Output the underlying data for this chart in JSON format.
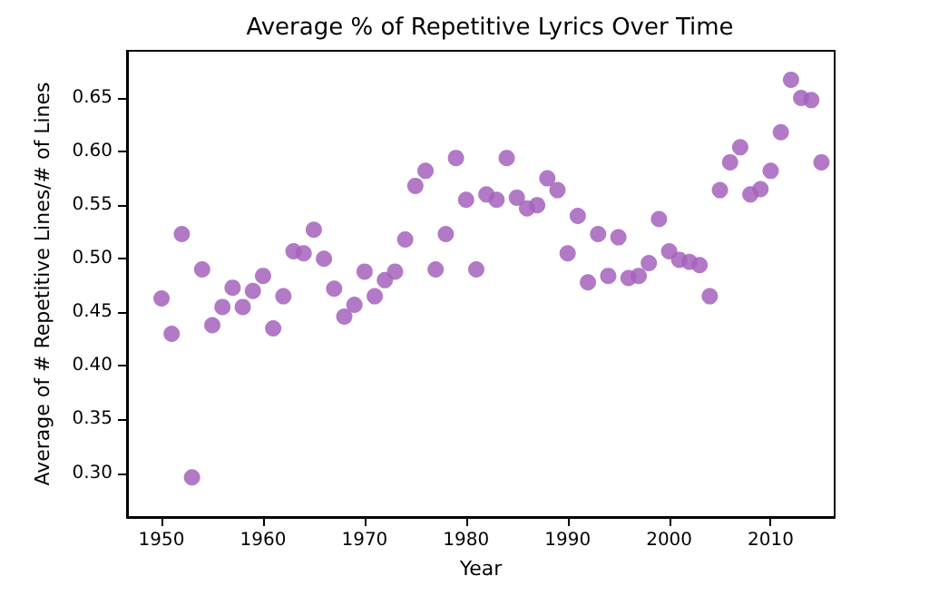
{
  "chart_data": {
    "type": "scatter",
    "title": "Average % of Repetitive Lyrics Over Time",
    "xlabel": "Year",
    "ylabel": "Average of # Repetitive Lines/# of Lines",
    "x": [
      1950,
      1951,
      1952,
      1953,
      1954,
      1955,
      1956,
      1957,
      1958,
      1959,
      1960,
      1961,
      1962,
      1963,
      1964,
      1965,
      1966,
      1967,
      1968,
      1969,
      1970,
      1971,
      1972,
      1973,
      1974,
      1975,
      1976,
      1977,
      1978,
      1979,
      1980,
      1981,
      1982,
      1983,
      1984,
      1985,
      1986,
      1987,
      1988,
      1989,
      1990,
      1991,
      1992,
      1993,
      1994,
      1995,
      1996,
      1997,
      1998,
      1999,
      2000,
      2001,
      2002,
      2003,
      2004,
      2005,
      2006,
      2007,
      2008,
      2009,
      2010,
      2011,
      2012,
      2013,
      2014,
      2015
    ],
    "series": [
      {
        "color": "#a461bc",
        "values": [
          0.463,
          0.43,
          0.523,
          0.296,
          0.49,
          0.438,
          0.455,
          0.473,
          0.455,
          0.47,
          0.484,
          0.435,
          0.465,
          0.507,
          0.505,
          0.527,
          0.5,
          0.472,
          0.446,
          0.457,
          0.488,
          0.465,
          0.48,
          0.488,
          0.518,
          0.568,
          0.582,
          0.49,
          0.523,
          0.594,
          0.555,
          0.49,
          0.56,
          0.555,
          0.594,
          0.557,
          0.547,
          0.55,
          0.575,
          0.564,
          0.505,
          0.54,
          0.478,
          0.523,
          0.484,
          0.52,
          0.482,
          0.484,
          0.496,
          0.537,
          0.507,
          0.499,
          0.497,
          0.494,
          0.465,
          0.564,
          0.59,
          0.604,
          0.56,
          0.565,
          0.582,
          0.618,
          0.667,
          0.65,
          0.648,
          0.59
        ]
      }
    ],
    "xlim": [
      1946.6,
      2016.3
    ],
    "xticks": [
      1950,
      1960,
      1970,
      1980,
      1990,
      2000,
      2010
    ],
    "ylim": [
      0.259,
      0.694
    ],
    "yticks": [
      {
        "value": 0.3,
        "label": "0.30"
      },
      {
        "value": 0.35,
        "label": "0.35"
      },
      {
        "value": 0.4,
        "label": "0.40"
      },
      {
        "value": 0.45,
        "label": "0.45"
      },
      {
        "value": 0.5,
        "label": "0.50"
      },
      {
        "value": 0.55,
        "label": "0.55"
      },
      {
        "value": 0.6,
        "label": "0.60"
      },
      {
        "value": 0.65,
        "label": "0.65"
      }
    ],
    "marker": "circle",
    "grid": false
  }
}
